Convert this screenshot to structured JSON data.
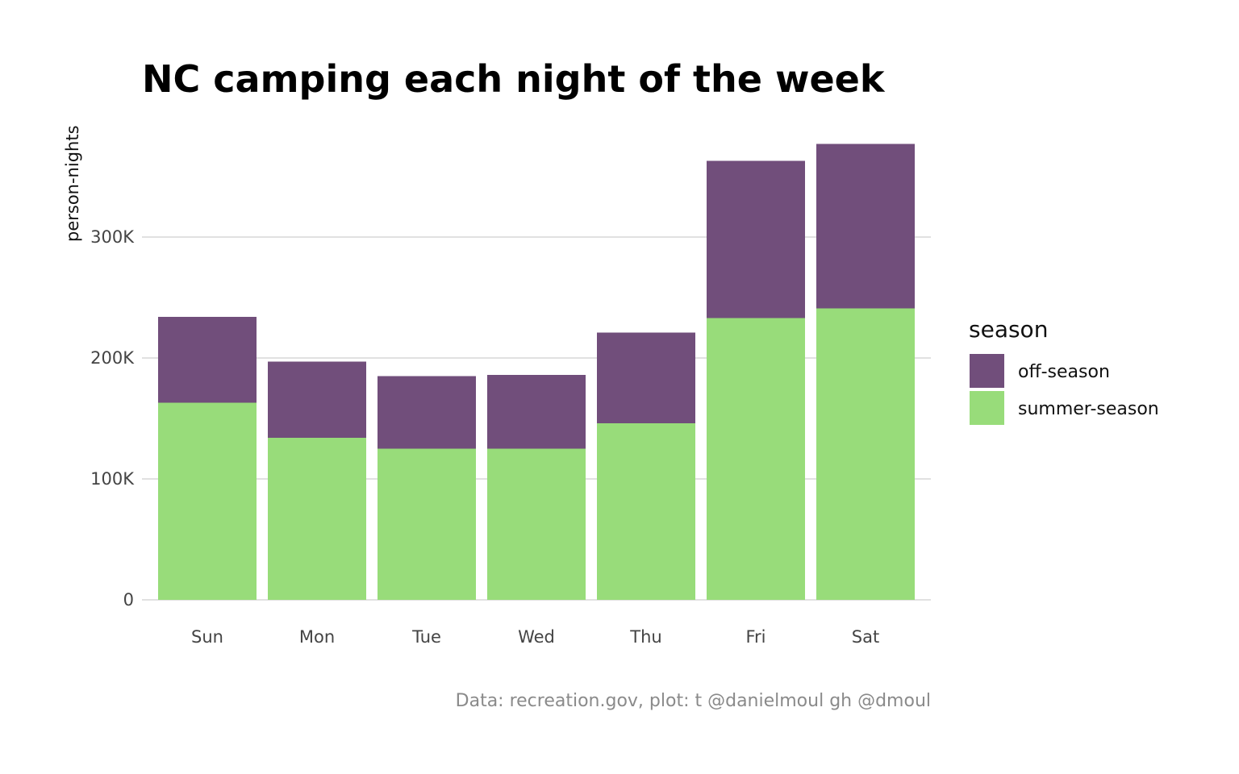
{
  "chart_data": {
    "type": "bar",
    "stacked": true,
    "title": "NC camping each night of the week",
    "xlabel": "",
    "ylabel": "person-nights",
    "categories": [
      "Sun",
      "Mon",
      "Tue",
      "Wed",
      "Thu",
      "Fri",
      "Sat"
    ],
    "series": [
      {
        "name": "summer-season",
        "color": "#98dc7a",
        "values": [
          163000,
          134000,
          125000,
          125000,
          146000,
          233000,
          241000
        ]
      },
      {
        "name": "off-season",
        "color": "#714e7b",
        "values": [
          71000,
          63000,
          60000,
          61000,
          75000,
          130000,
          136000
        ]
      }
    ],
    "ylim": [
      0,
      380000
    ],
    "yticks": [
      0,
      100000,
      200000,
      300000
    ],
    "ytick_labels": [
      "0",
      "100K",
      "200K",
      "300K"
    ],
    "grid": true,
    "legend": {
      "title": "season",
      "position": "right",
      "entries": [
        "off-season",
        "summer-season"
      ]
    },
    "caption": "Data: recreation.gov, plot: t @danielmoul gh @dmoul"
  }
}
